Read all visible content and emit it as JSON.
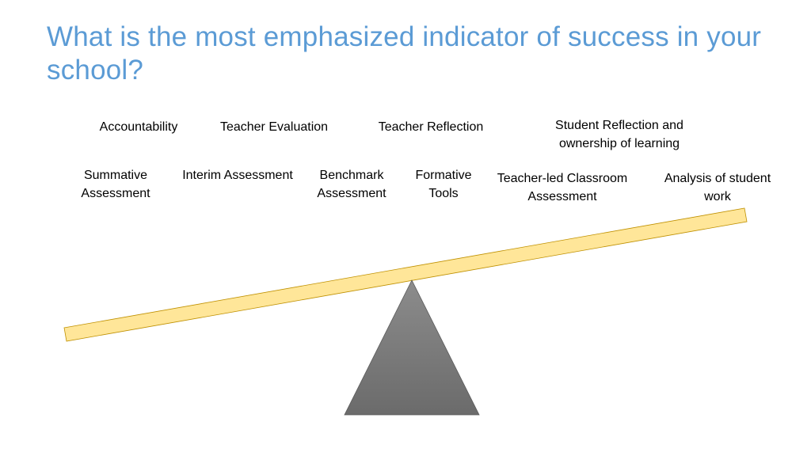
{
  "title": "What is the most emphasized indicator of success in your school?",
  "labels": {
    "accountability": "Accountability",
    "teacher_evaluation": "Teacher Evaluation",
    "teacher_reflection": "Teacher Reflection",
    "student_reflection": "Student Reflection and ownership of learning",
    "summative_assessment": "Summative Assessment",
    "interim_assessment": "Interim Assessment",
    "benchmark_assessment": "Benchmark Assessment",
    "formative_tools": "Formative Tools",
    "teacher_led_classroom": "Teacher-led Classroom Assessment",
    "analysis_student_work": "Analysis of student work"
  },
  "colors": {
    "title": "#5b9bd5",
    "beam_fill": "#ffe699",
    "beam_stroke": "#bf9000",
    "fulcrum_top": "#8c8c8c",
    "fulcrum_bottom": "#6b6b6b"
  }
}
